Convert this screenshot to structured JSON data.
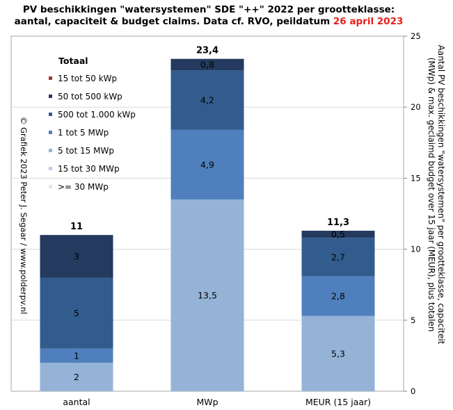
{
  "title": {
    "line1": "PV beschikkingen \"watersystemen\" SDE \"++\" 2022 per grootteklasse:",
    "line2_prefix": "aantal, capaciteit & budget claims. Data cf. RVO, peildatum ",
    "line2_date": "26 april 2023"
  },
  "copyright": "© Grafiek 2023 Peter J. Segaar / www.polderpv.nl",
  "legend": {
    "title": "Totaal",
    "items": [
      {
        "label": "15 tot 50 kWp",
        "color": "#a23a2e"
      },
      {
        "label": "50 tot 500 kWp",
        "color": "#243a5e"
      },
      {
        "label": "500 tot 1.000 kWp",
        "color": "#335c8e"
      },
      {
        "label": "1 tot 5 MWp",
        "color": "#4f80bd"
      },
      {
        "label": "5 tot 15 MWp",
        "color": "#95b3d7"
      },
      {
        "label": "15 tot 30 MWp",
        "color": "#b9cde5"
      },
      {
        "label": ">= 30 MWp",
        "color": "#dce6f2"
      }
    ]
  },
  "chart_data": {
    "type": "bar",
    "stacked": true,
    "categories": [
      "aantal",
      "MWp",
      "MEUR (15 jaar)"
    ],
    "series": [
      {
        "name": "5 tot 15 MWp",
        "color": "#95b3d7",
        "values": [
          2,
          13.5,
          5.3
        ]
      },
      {
        "name": "1 tot 5 MWp",
        "color": "#4f80bd",
        "values": [
          1,
          4.9,
          2.8
        ]
      },
      {
        "name": "500 tot 1.000 kWp",
        "color": "#335c8e",
        "values": [
          5,
          4.2,
          2.7
        ]
      },
      {
        "name": "50 tot 500 kWp",
        "color": "#243a5e",
        "values": [
          3,
          0.8,
          0.5
        ]
      }
    ],
    "totals": [
      "11",
      "23,4",
      "11,3"
    ],
    "segment_labels": [
      [
        "2",
        "13,5",
        "5,3"
      ],
      [
        "1",
        "4,9",
        "2,8"
      ],
      [
        "5",
        "4,2",
        "2,7"
      ],
      [
        "3",
        "0,8",
        "0,5"
      ]
    ],
    "y_axis": {
      "side": "right",
      "min": 0,
      "max": 25,
      "ticks": [
        0,
        5,
        10,
        15,
        20,
        25
      ]
    },
    "y_title": "Aantal PV beschikkingen \"watersystemen\" per grootteklasse, capaciteit (MWp) & max. geclaimd budget over 15 jaar (MEUR), plus totalen",
    "grid": true,
    "legend_position": "top-left"
  }
}
